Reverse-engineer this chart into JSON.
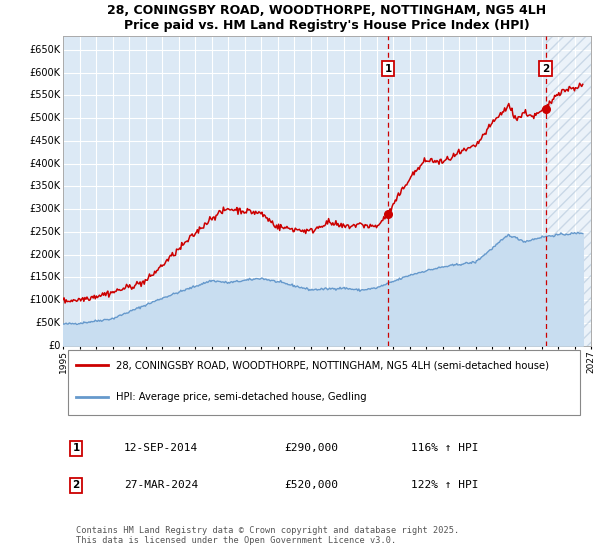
{
  "title": "28, CONINGSBY ROAD, WOODTHORPE, NOTTINGHAM, NG5 4LH",
  "subtitle": "Price paid vs. HM Land Registry's House Price Index (HPI)",
  "legend_line1": "28, CONINGSBY ROAD, WOODTHORPE, NOTTINGHAM, NG5 4LH (semi-detached house)",
  "legend_line2": "HPI: Average price, semi-detached house, Gedling",
  "annotation1_label": "1",
  "annotation1_date": "12-SEP-2014",
  "annotation1_price": "£290,000",
  "annotation1_hpi": "116% ↑ HPI",
  "annotation1_year": 2014.7,
  "annotation1_value": 290000,
  "annotation2_label": "2",
  "annotation2_date": "27-MAR-2024",
  "annotation2_price": "£520,000",
  "annotation2_hpi": "122% ↑ HPI",
  "annotation2_year": 2024.25,
  "annotation2_value": 520000,
  "ylim": [
    0,
    680000
  ],
  "xlim_start": 1995,
  "xlim_end": 2027,
  "plot_bg_color": "#dce9f5",
  "red_line_color": "#cc0000",
  "blue_line_color": "#6699cc",
  "grid_color": "#ffffff",
  "dashed_line_color": "#cc0000",
  "copyright_text": "Contains HM Land Registry data © Crown copyright and database right 2025.\nThis data is licensed under the Open Government Licence v3.0.",
  "yticks": [
    0,
    50000,
    100000,
    150000,
    200000,
    250000,
    300000,
    350000,
    400000,
    450000,
    500000,
    550000,
    600000,
    650000
  ],
  "ytick_labels": [
    "£0",
    "£50K",
    "£100K",
    "£150K",
    "£200K",
    "£250K",
    "£300K",
    "£350K",
    "£400K",
    "£450K",
    "£500K",
    "£550K",
    "£600K",
    "£650K"
  ]
}
